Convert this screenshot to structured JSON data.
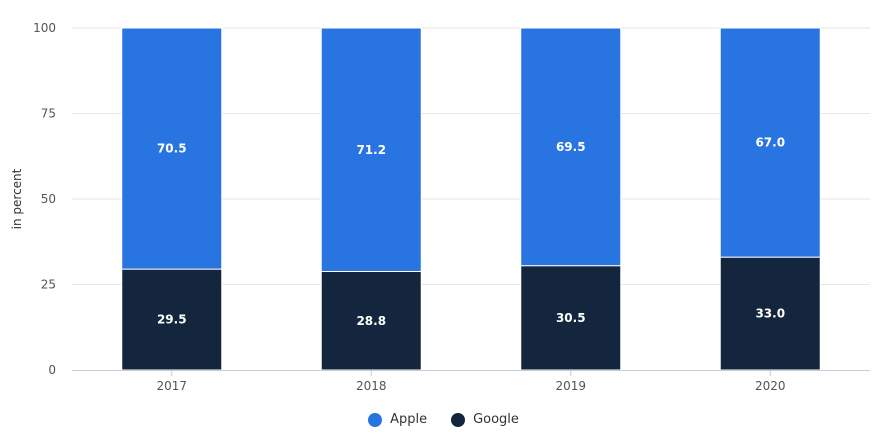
{
  "chart_data": {
    "type": "bar",
    "stacked": true,
    "categories": [
      "2017",
      "2018",
      "2019",
      "2020"
    ],
    "series": [
      {
        "name": "Google",
        "values": [
          29.5,
          28.8,
          30.5,
          33.0
        ],
        "labels": [
          "29.5",
          "28.8",
          "30.5",
          "33.0"
        ],
        "color": "#14263d"
      },
      {
        "name": "Apple",
        "values": [
          70.5,
          71.2,
          69.5,
          67.0
        ],
        "labels": [
          "70.5",
          "71.2",
          "69.5",
          "67.0"
        ],
        "color": "#2874e0"
      }
    ],
    "ylabel": "in percent",
    "ylim": [
      0,
      100
    ],
    "yticks": [
      "0",
      "25",
      "50",
      "75",
      "100"
    ],
    "grid": true,
    "legend_position": "bottom"
  },
  "legend": [
    {
      "label": "Apple",
      "color": "#2874e0"
    },
    {
      "label": "Google",
      "color": "#14263d"
    }
  ]
}
